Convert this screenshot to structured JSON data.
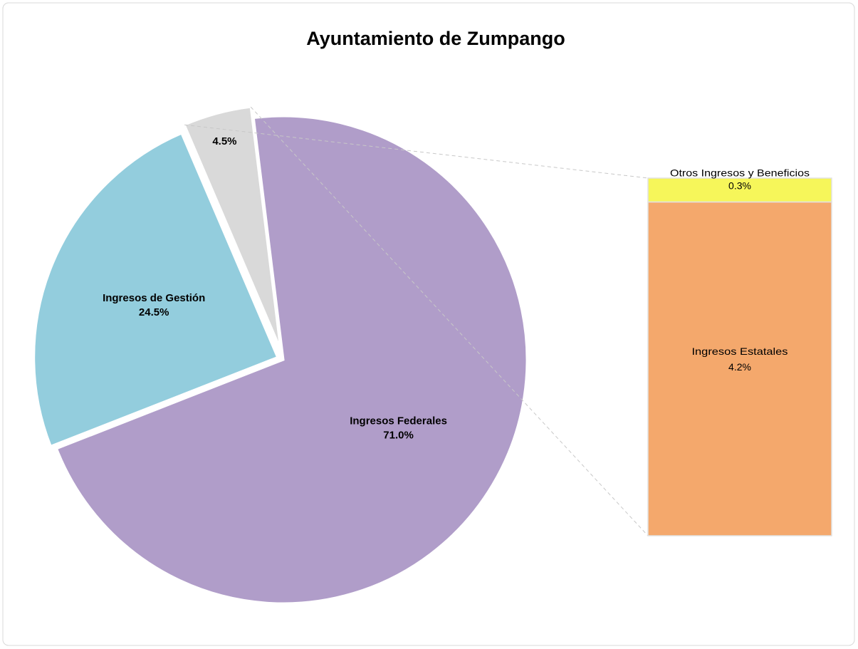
{
  "chart_data": {
    "type": "bar_of_pie",
    "title": "Ayuntamiento de Zumpango",
    "categories": [
      "Ingresos Federales",
      "Ingresos de Gestión",
      null
    ],
    "values": [
      71.0,
      24.5,
      4.5
    ],
    "value_labels": [
      "71.0%",
      "24.5%",
      "4.5%"
    ],
    "colors": [
      "#b09dc9",
      "#93cddd",
      "#d9d9d9"
    ],
    "bar": {
      "categories": [
        "Otros Ingresos y Beneficios",
        "Ingresos Estatales"
      ],
      "values": [
        0.3,
        4.2
      ],
      "value_labels": [
        "0.3%",
        "4.2%"
      ],
      "colors": [
        "#f6f65a",
        "#f4a86c"
      ]
    }
  }
}
